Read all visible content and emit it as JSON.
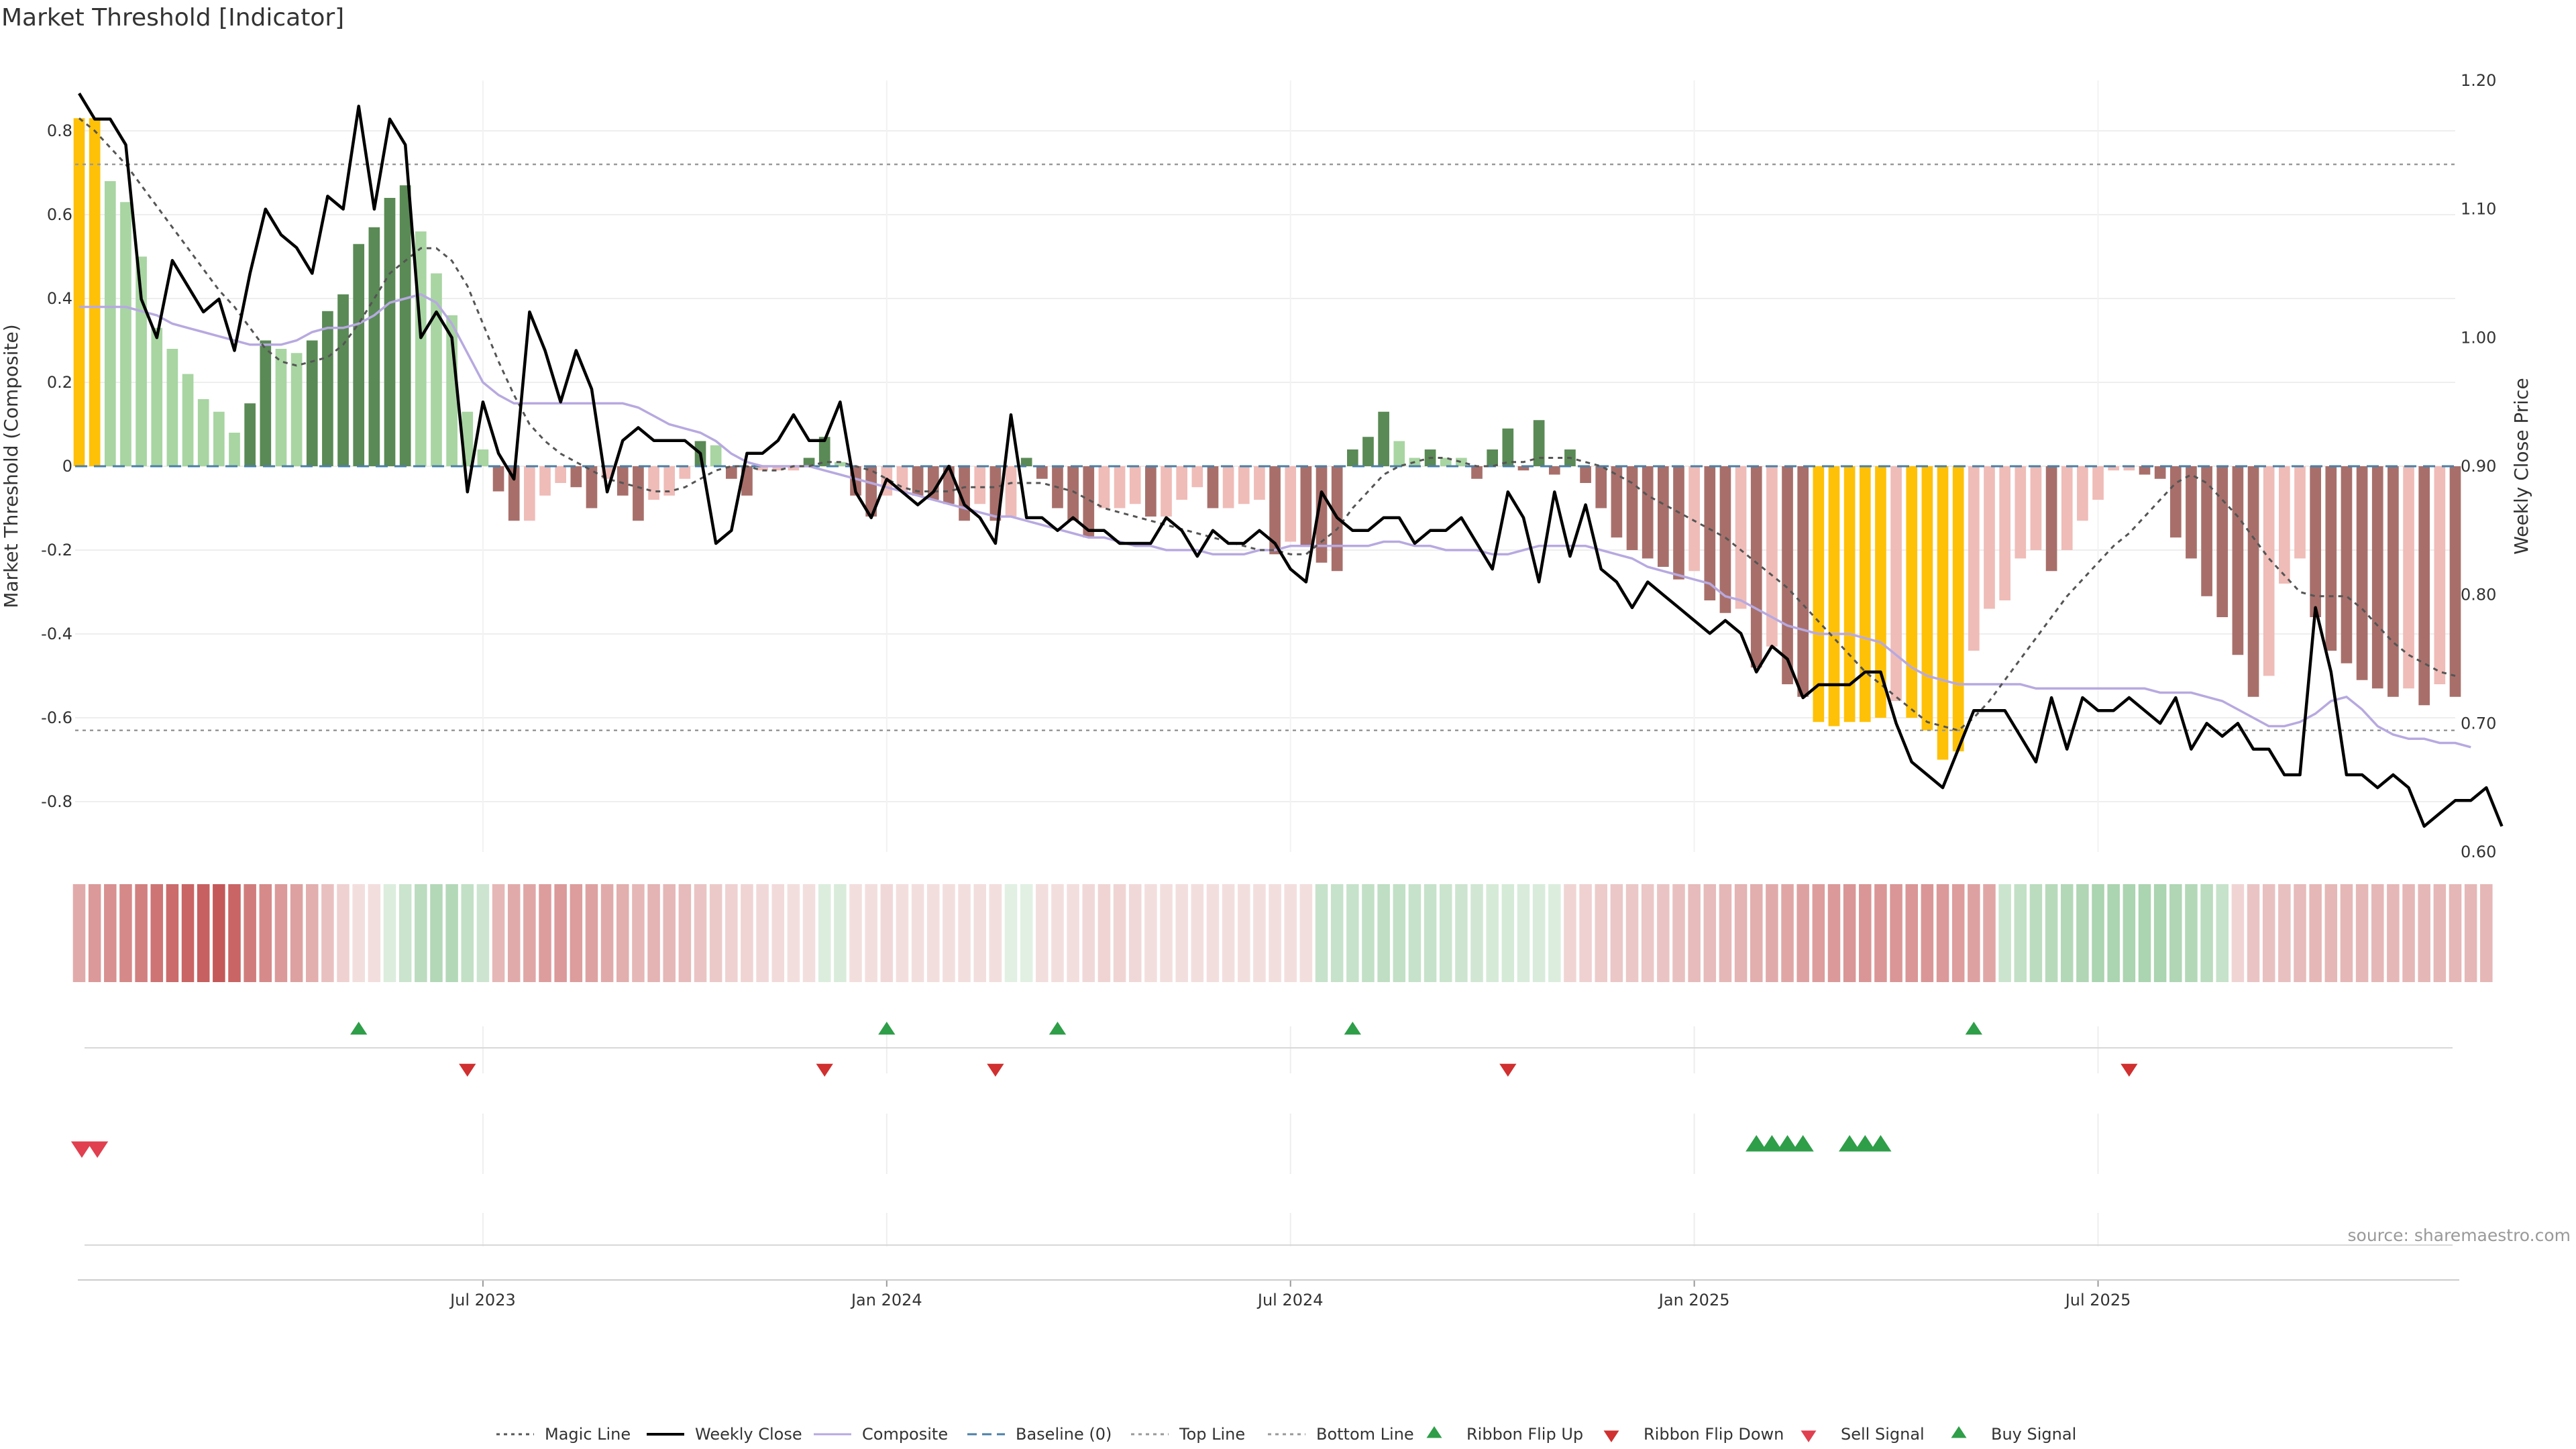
{
  "title": "Market Threshold [Indicator]",
  "source": "source: sharemaestro.com",
  "colors": {
    "bar_extreme": "#ffc107",
    "bar_pos_strong": "#5a8a55",
    "bar_pos_weak": "#a8d5a2",
    "bar_neg_strong": "#a86f6a",
    "bar_neg_weak": "#efbcb8",
    "weekly_close": "#000000",
    "composite": "#b7a9e0",
    "magic_line": "#555555",
    "baseline": "#4a7fa7",
    "ribbon_up": "#2e9e48",
    "ribbon_down": "#d03030",
    "buy_signal": "#2e9e48",
    "sell_signal": "#e04050"
  },
  "chart_data": {
    "type": "bar+line",
    "title": "Market Threshold [Indicator]",
    "ylabel_left": "Market Threshold (Composite)",
    "ylabel_right": "Weekly Close Price",
    "ylim_left": [
      -0.92,
      0.92
    ],
    "ylim_right": [
      0.6,
      1.2
    ],
    "yticks_left": [
      "0.8",
      "0.6",
      "0.4",
      "0.2",
      "0",
      "-0.2",
      "-0.4",
      "-0.6",
      "-0.8"
    ],
    "yticks_right": [
      "1.20",
      "1.10",
      "1.00",
      "0.90",
      "0.80",
      "0.70",
      "0.60"
    ],
    "top_line": 0.72,
    "bottom_line": -0.63,
    "baseline": 0,
    "x_start": "2023-01-01",
    "x_step_days": 7,
    "xticks": [
      {
        "label": "Jul 2023",
        "index": 26
      },
      {
        "label": "Jan 2024",
        "index": 52
      },
      {
        "label": "Jul 2024",
        "index": 78
      },
      {
        "label": "Jan 2025",
        "index": 104
      },
      {
        "label": "Jul 2025",
        "index": 130
      }
    ],
    "bars": [
      0.83,
      0.83,
      0.68,
      0.63,
      0.5,
      0.33,
      0.28,
      0.22,
      0.16,
      0.13,
      0.08,
      0.15,
      0.3,
      0.28,
      0.27,
      0.3,
      0.37,
      0.41,
      0.53,
      0.57,
      0.64,
      0.67,
      0.56,
      0.46,
      0.36,
      0.13,
      0.04,
      -0.06,
      -0.13,
      -0.13,
      -0.07,
      -0.04,
      -0.05,
      -0.1,
      -0.03,
      -0.07,
      -0.13,
      -0.08,
      -0.07,
      -0.03,
      0.06,
      0.05,
      -0.03,
      -0.07,
      -0.01,
      -0.01,
      -0.01,
      0.02,
      0.07,
      0.01,
      -0.07,
      -0.12,
      -0.07,
      -0.06,
      -0.07,
      -0.08,
      -0.09,
      -0.13,
      -0.09,
      -0.13,
      -0.12,
      0.02,
      -0.03,
      -0.1,
      -0.13,
      -0.17,
      -0.1,
      -0.1,
      -0.09,
      -0.12,
      -0.12,
      -0.08,
      -0.05,
      -0.1,
      -0.1,
      -0.09,
      -0.08,
      -0.21,
      -0.18,
      -0.19,
      -0.23,
      -0.25,
      0.04,
      0.07,
      0.13,
      0.06,
      0.02,
      0.04,
      0.02,
      0.02,
      -0.03,
      0.04,
      0.09,
      -0.01,
      0.11,
      -0.02,
      0.04,
      -0.04,
      -0.1,
      -0.17,
      -0.2,
      -0.22,
      -0.24,
      -0.27,
      -0.25,
      -0.32,
      -0.35,
      -0.34,
      -0.48,
      -0.43,
      -0.52,
      -0.55,
      -0.61,
      -0.62,
      -0.61,
      -0.61,
      -0.6,
      -0.56,
      -0.6,
      -0.63,
      -0.7,
      -0.68,
      -0.44,
      -0.34,
      -0.32,
      -0.22,
      -0.2,
      -0.25,
      -0.2,
      -0.13,
      -0.08,
      -0.01,
      -0.01,
      -0.02,
      -0.03,
      -0.17,
      -0.22,
      -0.31,
      -0.36,
      -0.45,
      -0.55,
      -0.5,
      -0.28,
      -0.22,
      -0.36,
      -0.44,
      -0.47,
      -0.51,
      -0.53,
      -0.55,
      -0.53,
      -0.57,
      -0.52,
      -0.55
    ],
    "composite": [
      0.38,
      0.38,
      0.38,
      0.38,
      0.37,
      0.36,
      0.34,
      0.33,
      0.32,
      0.31,
      0.3,
      0.29,
      0.29,
      0.29,
      0.3,
      0.32,
      0.33,
      0.33,
      0.34,
      0.36,
      0.39,
      0.4,
      0.41,
      0.39,
      0.34,
      0.27,
      0.2,
      0.17,
      0.15,
      0.15,
      0.15,
      0.15,
      0.15,
      0.15,
      0.15,
      0.15,
      0.14,
      0.12,
      0.1,
      0.09,
      0.08,
      0.06,
      0.03,
      0.01,
      0.0,
      0.0,
      0.0,
      0.0,
      -0.01,
      -0.02,
      -0.03,
      -0.04,
      -0.05,
      -0.06,
      -0.07,
      -0.08,
      -0.09,
      -0.1,
      -0.11,
      -0.12,
      -0.12,
      -0.13,
      -0.14,
      -0.15,
      -0.16,
      -0.17,
      -0.17,
      -0.18,
      -0.19,
      -0.19,
      -0.2,
      -0.2,
      -0.2,
      -0.21,
      -0.21,
      -0.21,
      -0.2,
      -0.2,
      -0.19,
      -0.19,
      -0.19,
      -0.19,
      -0.19,
      -0.19,
      -0.18,
      -0.18,
      -0.19,
      -0.19,
      -0.2,
      -0.2,
      -0.2,
      -0.21,
      -0.21,
      -0.2,
      -0.19,
      -0.19,
      -0.19,
      -0.19,
      -0.2,
      -0.21,
      -0.22,
      -0.24,
      -0.25,
      -0.26,
      -0.27,
      -0.28,
      -0.31,
      -0.32,
      -0.34,
      -0.36,
      -0.38,
      -0.39,
      -0.4,
      -0.4,
      -0.4,
      -0.41,
      -0.42,
      -0.45,
      -0.48,
      -0.5,
      -0.51,
      -0.52,
      -0.52,
      -0.52,
      -0.52,
      -0.52,
      -0.53,
      -0.53,
      -0.53,
      -0.53,
      -0.53,
      -0.53,
      -0.53,
      -0.53,
      -0.54,
      -0.54,
      -0.54,
      -0.55,
      -0.56,
      -0.58,
      -0.6,
      -0.62,
      -0.62,
      -0.61,
      -0.59,
      -0.56,
      -0.55,
      -0.58,
      -0.62,
      -0.64,
      -0.65,
      -0.65,
      -0.66,
      -0.66,
      -0.67
    ],
    "magic_line": [
      0.83,
      0.8,
      0.76,
      0.72,
      0.67,
      0.62,
      0.57,
      0.52,
      0.47,
      0.42,
      0.38,
      0.33,
      0.28,
      0.25,
      0.24,
      0.25,
      0.26,
      0.29,
      0.34,
      0.4,
      0.46,
      0.49,
      0.52,
      0.52,
      0.49,
      0.43,
      0.34,
      0.25,
      0.17,
      0.1,
      0.06,
      0.03,
      0.01,
      -0.01,
      -0.03,
      -0.04,
      -0.05,
      -0.06,
      -0.06,
      -0.05,
      -0.03,
      -0.01,
      0.0,
      0.0,
      -0.01,
      -0.01,
      0.0,
      0.0,
      0.01,
      0.01,
      0.0,
      -0.01,
      -0.03,
      -0.05,
      -0.06,
      -0.06,
      -0.06,
      -0.05,
      -0.05,
      -0.05,
      -0.04,
      -0.04,
      -0.04,
      -0.05,
      -0.06,
      -0.08,
      -0.1,
      -0.11,
      -0.12,
      -0.13,
      -0.14,
      -0.15,
      -0.16,
      -0.17,
      -0.18,
      -0.19,
      -0.2,
      -0.2,
      -0.21,
      -0.21,
      -0.18,
      -0.15,
      -0.1,
      -0.06,
      -0.02,
      0.0,
      0.01,
      0.02,
      0.02,
      0.01,
      0.0,
      0.0,
      0.01,
      0.01,
      0.02,
      0.02,
      0.02,
      0.01,
      0.0,
      -0.02,
      -0.04,
      -0.07,
      -0.09,
      -0.11,
      -0.13,
      -0.15,
      -0.17,
      -0.2,
      -0.23,
      -0.26,
      -0.29,
      -0.33,
      -0.37,
      -0.41,
      -0.45,
      -0.49,
      -0.52,
      -0.55,
      -0.58,
      -0.61,
      -0.62,
      -0.63,
      -0.6,
      -0.56,
      -0.51,
      -0.46,
      -0.41,
      -0.36,
      -0.31,
      -0.27,
      -0.23,
      -0.19,
      -0.16,
      -0.12,
      -0.08,
      -0.04,
      -0.02,
      -0.04,
      -0.08,
      -0.12,
      -0.17,
      -0.22,
      -0.26,
      -0.3,
      -0.31,
      -0.31,
      -0.31,
      -0.34,
      -0.38,
      -0.42,
      -0.45,
      -0.47,
      -0.49,
      -0.5
    ],
    "weekly_close": [
      1.19,
      1.17,
      1.17,
      1.15,
      1.03,
      1.0,
      1.06,
      1.04,
      1.02,
      1.03,
      0.99,
      1.05,
      1.1,
      1.08,
      1.07,
      1.05,
      1.11,
      1.1,
      1.18,
      1.1,
      1.17,
      1.15,
      1.0,
      1.02,
      1.0,
      0.88,
      0.95,
      0.91,
      0.89,
      1.02,
      0.99,
      0.95,
      0.99,
      0.96,
      0.88,
      0.92,
      0.93,
      0.92,
      0.92,
      0.92,
      0.91,
      0.84,
      0.85,
      0.91,
      0.91,
      0.92,
      0.94,
      0.92,
      0.92,
      0.95,
      0.88,
      0.86,
      0.89,
      0.88,
      0.87,
      0.88,
      0.9,
      0.87,
      0.86,
      0.84,
      0.94,
      0.86,
      0.86,
      0.85,
      0.86,
      0.85,
      0.85,
      0.84,
      0.84,
      0.84,
      0.86,
      0.85,
      0.83,
      0.85,
      0.84,
      0.84,
      0.85,
      0.84,
      0.82,
      0.81,
      0.88,
      0.86,
      0.85,
      0.85,
      0.86,
      0.86,
      0.84,
      0.85,
      0.85,
      0.86,
      0.84,
      0.82,
      0.88,
      0.86,
      0.81,
      0.88,
      0.83,
      0.87,
      0.82,
      0.81,
      0.79,
      0.81,
      0.8,
      0.79,
      0.78,
      0.77,
      0.78,
      0.77,
      0.74,
      0.76,
      0.75,
      0.72,
      0.73,
      0.73,
      0.73,
      0.74,
      0.74,
      0.7,
      0.67,
      0.66,
      0.65,
      0.68,
      0.71,
      0.71,
      0.71,
      0.69,
      0.67,
      0.72,
      0.68,
      0.72,
      0.71,
      0.71,
      0.72,
      0.71,
      0.7,
      0.72,
      0.68,
      0.7,
      0.69,
      0.7,
      0.68,
      0.68,
      0.66,
      0.66,
      0.79,
      0.74,
      0.66,
      0.66,
      0.65,
      0.66,
      0.65,
      0.62,
      0.63,
      0.64,
      0.64,
      0.65,
      0.62
    ],
    "ribbon": [
      -0.4,
      -0.48,
      -0.52,
      -0.56,
      -0.6,
      -0.65,
      -0.7,
      -0.72,
      -0.75,
      -0.78,
      -0.72,
      -0.62,
      -0.55,
      -0.48,
      -0.44,
      -0.38,
      -0.3,
      -0.22,
      -0.15,
      -0.1,
      0.18,
      0.28,
      0.36,
      0.4,
      0.4,
      0.32,
      0.26,
      -0.34,
      -0.4,
      -0.42,
      -0.46,
      -0.48,
      -0.46,
      -0.44,
      -0.4,
      -0.38,
      -0.34,
      -0.36,
      -0.34,
      -0.32,
      -0.28,
      -0.25,
      -0.22,
      -0.2,
      -0.18,
      -0.17,
      -0.16,
      -0.15,
      0.18,
      0.2,
      -0.1,
      -0.16,
      -0.18,
      -0.16,
      -0.14,
      -0.12,
      -0.1,
      -0.1,
      -0.1,
      -0.1,
      0.14,
      0.12,
      -0.1,
      -0.12,
      -0.16,
      -0.18,
      -0.2,
      -0.2,
      -0.18,
      -0.16,
      -0.14,
      -0.12,
      -0.12,
      -0.1,
      -0.1,
      -0.1,
      -0.12,
      -0.14,
      -0.14,
      -0.16,
      0.3,
      0.3,
      0.3,
      0.32,
      0.34,
      0.32,
      0.3,
      0.3,
      0.28,
      0.26,
      0.24,
      0.22,
      0.22,
      0.2,
      0.2,
      0.18,
      -0.2,
      -0.22,
      -0.24,
      -0.26,
      -0.26,
      -0.26,
      -0.28,
      -0.3,
      -0.32,
      -0.32,
      -0.34,
      -0.36,
      -0.38,
      -0.4,
      -0.42,
      -0.44,
      -0.46,
      -0.48,
      -0.5,
      -0.5,
      -0.5,
      -0.5,
      -0.5,
      -0.5,
      -0.48,
      -0.46,
      -0.44,
      -0.42,
      0.28,
      0.32,
      0.36,
      0.38,
      0.4,
      0.42,
      0.44,
      0.44,
      0.44,
      0.44,
      0.44,
      0.42,
      0.4,
      0.36,
      0.3,
      -0.2,
      -0.28,
      -0.3,
      -0.3,
      -0.32,
      -0.34,
      -0.34,
      -0.34,
      -0.34,
      -0.34,
      -0.34,
      -0.34,
      -0.34,
      -0.34,
      -0.34,
      -0.34,
      -0.34
    ],
    "ribbon_flip_up": [
      18,
      52,
      63,
      82,
      122
    ],
    "ribbon_flip_down": [
      25,
      48,
      59,
      92,
      132
    ],
    "sell_signal": [
      0,
      1
    ],
    "buy_signal": [
      108,
      109,
      110,
      111,
      114,
      115,
      116
    ]
  },
  "legend": [
    {
      "label": "Magic Line",
      "kind": "dotted-line",
      "color": "#555555"
    },
    {
      "label": "Weekly Close",
      "kind": "solid-line",
      "color": "#000000"
    },
    {
      "label": "Composite",
      "kind": "solid-line",
      "color": "#b7a9e0"
    },
    {
      "label": "Baseline (0)",
      "kind": "dashed-line",
      "color": "#4a7fa7"
    },
    {
      "label": "Top Line",
      "kind": "dotted-line",
      "color": "#999999"
    },
    {
      "label": "Bottom Line",
      "kind": "dotted-line",
      "color": "#999999"
    },
    {
      "label": "Ribbon Flip Up",
      "kind": "tri-up",
      "color": "#2e9e48"
    },
    {
      "label": "Ribbon Flip Down",
      "kind": "tri-down",
      "color": "#d03030"
    },
    {
      "label": "Sell Signal",
      "kind": "tri-down",
      "color": "#e04050"
    },
    {
      "label": "Buy Signal",
      "kind": "tri-up",
      "color": "#2e9e48"
    }
  ]
}
